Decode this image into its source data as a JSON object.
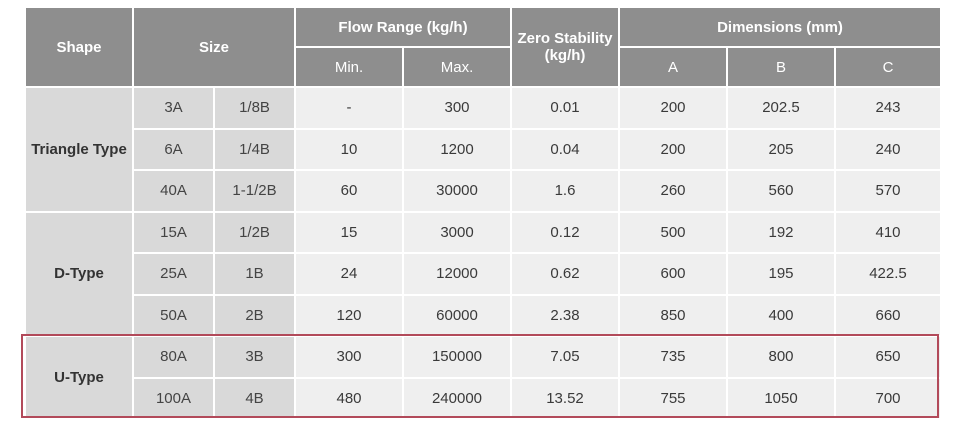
{
  "headers": {
    "shape": "Shape",
    "size": "Size",
    "flow_range": "Flow Range (kg/h)",
    "zero_stability_line1": "Zero Stability",
    "zero_stability_line2": "(kg/h)",
    "dimensions": "Dimensions (mm)",
    "min": "Min.",
    "max": "Max.",
    "a": "A",
    "b": "B",
    "c": "C"
  },
  "groups": [
    {
      "shape": "Triangle Type",
      "rows": [
        {
          "size_a": "3A",
          "size_b": "1/8B",
          "min": "-",
          "max": "300",
          "zero": "0.01",
          "a": "200",
          "b": "202.5",
          "c": "243"
        },
        {
          "size_a": "6A",
          "size_b": "1/4B",
          "min": "10",
          "max": "1200",
          "zero": "0.04",
          "a": "200",
          "b": "205",
          "c": "240"
        },
        {
          "size_a": "40A",
          "size_b": "1-1/2B",
          "min": "60",
          "max": "30000",
          "zero": "1.6",
          "a": "260",
          "b": "560",
          "c": "570"
        }
      ]
    },
    {
      "shape": "D-Type",
      "rows": [
        {
          "size_a": "15A",
          "size_b": "1/2B",
          "min": "15",
          "max": "3000",
          "zero": "0.12",
          "a": "500",
          "b": "192",
          "c": "410"
        },
        {
          "size_a": "25A",
          "size_b": "1B",
          "min": "24",
          "max": "12000",
          "zero": "0.62",
          "a": "600",
          "b": "195",
          "c": "422.5"
        },
        {
          "size_a": "50A",
          "size_b": "2B",
          "min": "120",
          "max": "60000",
          "zero": "2.38",
          "a": "850",
          "b": "400",
          "c": "660"
        }
      ]
    },
    {
      "shape": "U-Type",
      "highlighted": true,
      "rows": [
        {
          "size_a": "80A",
          "size_b": "3B",
          "min": "300",
          "max": "150000",
          "zero": "7.05",
          "a": "735",
          "b": "800",
          "c": "650"
        },
        {
          "size_a": "100A",
          "size_b": "4B",
          "min": "480",
          "max": "240000",
          "zero": "13.52",
          "a": "755",
          "b": "1050",
          "c": "700"
        }
      ]
    }
  ],
  "colors": {
    "header_bg": "#8e8e8e",
    "label_bg": "#d9d9d9",
    "value_bg": "#efefef",
    "highlight_border": "#b24a5a"
  }
}
